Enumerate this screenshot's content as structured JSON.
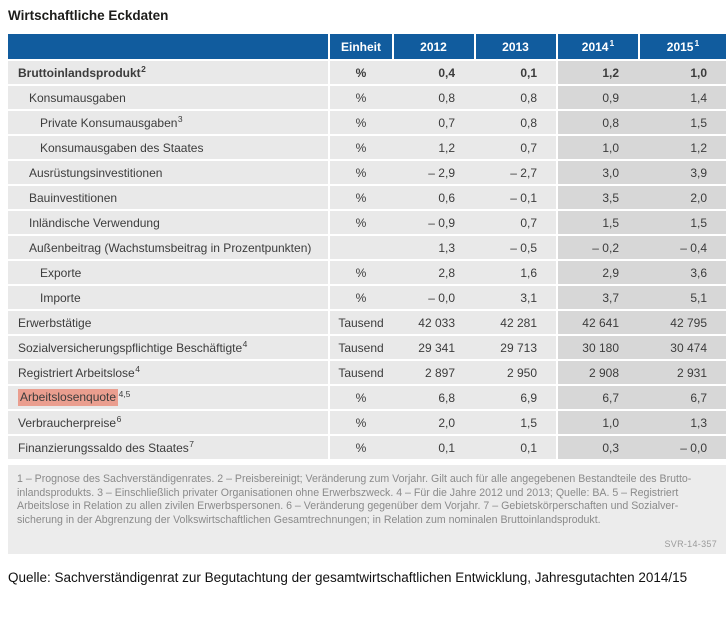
{
  "title": "Wirtschaftliche Eckdaten",
  "colors": {
    "header_blue": "#115c9e",
    "row_gray": "#e9e9e9",
    "forecast_gray": "#d7d7d7",
    "highlight_salmon": "#ea9e8f",
    "footnote_bg": "#ececec"
  },
  "table": {
    "unit_header": "Einheit",
    "years": [
      {
        "label": "2012",
        "sup": ""
      },
      {
        "label": "2013",
        "sup": ""
      },
      {
        "label": "2014",
        "sup": "1"
      },
      {
        "label": "2015",
        "sup": "1"
      }
    ],
    "rows": [
      {
        "label": "Bruttoinlandsprodukt",
        "sup": "2",
        "indent": 0,
        "bold": true,
        "highlight": false,
        "unit": "%",
        "values": [
          "0,4",
          "0,1",
          "1,2",
          "1,0"
        ]
      },
      {
        "label": "Konsumausgaben",
        "sup": "",
        "indent": 1,
        "bold": false,
        "highlight": false,
        "unit": "%",
        "values": [
          "0,8",
          "0,8",
          "0,9",
          "1,4"
        ]
      },
      {
        "label": "Private Konsumausgaben",
        "sup": "3",
        "indent": 2,
        "bold": false,
        "highlight": false,
        "unit": "%",
        "values": [
          "0,7",
          "0,8",
          "0,8",
          "1,5"
        ]
      },
      {
        "label": "Konsumausgaben des Staates",
        "sup": "",
        "indent": 2,
        "bold": false,
        "highlight": false,
        "unit": "%",
        "values": [
          "1,2",
          "0,7",
          "1,0",
          "1,2"
        ]
      },
      {
        "label": "Ausrüstungsinvestitionen",
        "sup": "",
        "indent": 1,
        "bold": false,
        "highlight": false,
        "unit": "%",
        "values": [
          "– 2,9",
          "– 2,7",
          "3,0",
          "3,9"
        ]
      },
      {
        "label": "Bauinvestitionen",
        "sup": "",
        "indent": 1,
        "bold": false,
        "highlight": false,
        "unit": "%",
        "values": [
          "0,6",
          "– 0,1",
          "3,5",
          "2,0"
        ]
      },
      {
        "label": "Inländische Verwendung",
        "sup": "",
        "indent": 1,
        "bold": false,
        "highlight": false,
        "unit": "%",
        "values": [
          "– 0,9",
          "0,7",
          "1,5",
          "1,5"
        ]
      },
      {
        "label": "Außenbeitrag (Wachstumsbeitrag in Prozentpunkten)",
        "sup": "",
        "indent": 1,
        "bold": false,
        "highlight": false,
        "unit": "",
        "values": [
          "1,3",
          "– 0,5",
          "– 0,2",
          "– 0,4"
        ]
      },
      {
        "label": "Exporte",
        "sup": "",
        "indent": 2,
        "bold": false,
        "highlight": false,
        "unit": "%",
        "values": [
          "2,8",
          "1,6",
          "2,9",
          "3,6"
        ]
      },
      {
        "label": "Importe",
        "sup": "",
        "indent": 2,
        "bold": false,
        "highlight": false,
        "unit": "%",
        "values": [
          "– 0,0",
          "3,1",
          "3,7",
          "5,1"
        ]
      },
      {
        "label": "Erwerbstätige",
        "sup": "",
        "indent": 0,
        "bold": false,
        "highlight": false,
        "unit": "Tausend",
        "values": [
          "42 033",
          "42 281",
          "42 641",
          "42 795"
        ]
      },
      {
        "label": "Sozialversicherungspflichtige Beschäftigte",
        "sup": "4",
        "indent": 0,
        "bold": false,
        "highlight": false,
        "unit": "Tausend",
        "values": [
          "29 341",
          "29 713",
          "30 180",
          "30 474"
        ]
      },
      {
        "label": "Registriert Arbeitslose",
        "sup": "4",
        "indent": 0,
        "bold": false,
        "highlight": false,
        "unit": "Tausend",
        "values": [
          "2 897",
          "2 950",
          "2 908",
          "2 931"
        ]
      },
      {
        "label": "Arbeitslosenquote",
        "sup": "4,5",
        "indent": 0,
        "bold": false,
        "highlight": true,
        "unit": "%",
        "values": [
          "6,8",
          "6,9",
          "6,7",
          "6,7"
        ]
      },
      {
        "label": "Verbraucherpreise",
        "sup": "6",
        "indent": 0,
        "bold": false,
        "highlight": false,
        "unit": "%",
        "values": [
          "2,0",
          "1,5",
          "1,0",
          "1,3"
        ]
      },
      {
        "label": "Finanzierungssaldo des Staates",
        "sup": "7",
        "indent": 0,
        "bold": false,
        "highlight": false,
        "unit": "%",
        "values": [
          "0,1",
          "0,1",
          "0,3",
          "– 0,0"
        ]
      }
    ]
  },
  "footnotes": {
    "lines": [
      "1 – Prognose des Sachverständigenrates.  2 – Preisbereinigt; Veränderung zum Vorjahr. Gilt auch für alle angegebenen Bestandteile des Brutto-",
      "inlandsprodukts.  3 – Einschließlich privater Organisationen ohne Erwerbszweck.  4 – Für die Jahre 2012 und 2013; Quelle: BA.  5 – Registriert",
      "Arbeitslose in Relation zu allen zivilen Erwerbspersonen.  6 – Veränderung gegenüber dem Vorjahr.  7 – Gebietskörperschaften und Sozialver-",
      "sicherung in der Abgrenzung der Volkswirtschaftlichen Gesamtrechnungen; in Relation zum nominalen Bruttoinlandsprodukt."
    ],
    "code": "SVR-14-357"
  },
  "source": "Quelle: Sachverständigenrat zur Begutachtung der gesamtwirtschaftlichen Entwicklung, Jahresgutachten 2014/15"
}
